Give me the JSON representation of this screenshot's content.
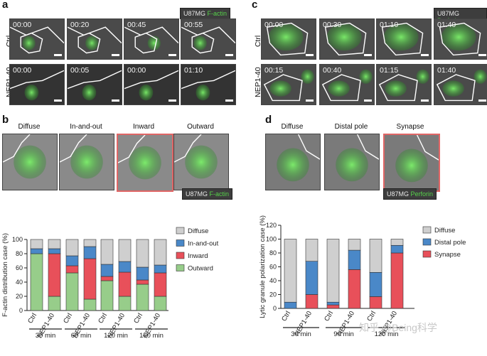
{
  "panels": {
    "a": {
      "letter": "a",
      "badge_prefix": "U87MG",
      "badge_suffix": "F-actin",
      "row1_label": "Ctrl",
      "row2_label": "NEP1-40",
      "row1_times": [
        "00:00",
        "00:20",
        "00:45",
        "00:55"
      ],
      "row2_times": [
        "00:00",
        "00:05",
        "00:00",
        "01:10"
      ]
    },
    "b": {
      "letter": "b",
      "badge_prefix": "U87MG",
      "badge_suffix": "F-actin",
      "captions": [
        "Diffuse",
        "In-and-out",
        "Inward",
        "Outward"
      ]
    },
    "c": {
      "letter": "c",
      "badge_prefix": "U87MG",
      "badge_suffix": "Perforin",
      "row1_label": "Ctrl",
      "row2_label": "NEP1-40",
      "row1_times": [
        "00:00",
        "00:30",
        "01:10",
        "01:40"
      ],
      "row2_times": [
        "00:15",
        "00:40",
        "01:15",
        "01:40"
      ]
    },
    "d": {
      "letter": "d",
      "badge_prefix": "U87MG",
      "badge_suffix": "Perforin",
      "captions": [
        "Diffuse",
        "Distal pole",
        "Synapse"
      ]
    }
  },
  "watermark": "知乎 @Being科学",
  "colors": {
    "diffuse": "#cfcfcf",
    "inout": "#4a88c8",
    "inward": "#e8505a",
    "outward": "#97cd8a",
    "distal": "#4a88c8",
    "synapse": "#e8505a",
    "green_label": "#56d24a",
    "highlight_border": "#e06666"
  },
  "chart_data": [
    {
      "type": "bar",
      "stacked": true,
      "categories": [
        "Ctrl",
        "NEP1-40",
        "Ctrl",
        "NEP1-40",
        "Ctrl",
        "NEP1-40",
        "Ctrl",
        "NEP1-40"
      ],
      "groups": [
        "30 min",
        "60 min",
        "120 min",
        "150 min"
      ],
      "ylabel": "F-actin distribution case (%)",
      "ylim": [
        0,
        100
      ],
      "yticks": [
        0,
        20,
        40,
        60,
        80,
        100
      ],
      "legend": "right",
      "series": [
        {
          "name": "Outward",
          "color": "#97cd8a",
          "values": [
            80,
            20,
            53,
            16,
            42,
            20,
            37,
            20
          ]
        },
        {
          "name": "Inward",
          "color": "#e8505a",
          "values": [
            0,
            60,
            10,
            57,
            6,
            34,
            6,
            33
          ]
        },
        {
          "name": "In-and-out",
          "color": "#4a88c8",
          "values": [
            7,
            7,
            14,
            17,
            17,
            15,
            18,
            11
          ]
        },
        {
          "name": "Diffuse",
          "color": "#cfcfcf",
          "values": [
            13,
            13,
            23,
            10,
            35,
            31,
            39,
            36
          ]
        }
      ],
      "legend_order": [
        "Diffuse",
        "In-and-out",
        "Inward",
        "Outward"
      ]
    },
    {
      "type": "bar",
      "stacked": true,
      "categories": [
        "Ctrl",
        "NEP1-40",
        "Ctrl",
        "NEP1-40",
        "Ctrl",
        "NEP1-40"
      ],
      "groups": [
        "30 min",
        "90 min",
        "120 min"
      ],
      "ylabel": "Lytic granule polarization case (%)",
      "ylim": [
        0,
        120
      ],
      "yticks": [
        0,
        20,
        40,
        60,
        80,
        100,
        120
      ],
      "legend": "right",
      "series": [
        {
          "name": "Synapse",
          "color": "#e8505a",
          "values": [
            0,
            20,
            5,
            56,
            17,
            80
          ]
        },
        {
          "name": "Distal pole",
          "color": "#4a88c8",
          "values": [
            9,
            48,
            4,
            28,
            35,
            11
          ]
        },
        {
          "name": "Diffuse",
          "color": "#cfcfcf",
          "values": [
            91,
            32,
            91,
            16,
            48,
            9
          ]
        }
      ],
      "legend_order": [
        "Diffuse",
        "Distal pole",
        "Synapse"
      ]
    }
  ]
}
